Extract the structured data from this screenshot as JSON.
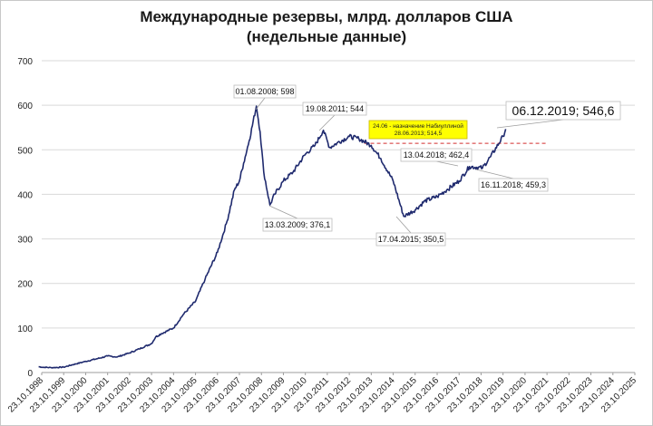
{
  "title_line1": "Международные резервы, млрд. долларов США",
  "title_line2": "(недельные данные)",
  "chart_data": {
    "type": "line",
    "ylim": [
      0,
      700
    ],
    "yticks": [
      0,
      100,
      200,
      300,
      400,
      500,
      600,
      700
    ],
    "xticks": [
      "23.10.1998",
      "23.10.1999",
      "23.10.2000",
      "23.10.2001",
      "23.10.2002",
      "23.10.2003",
      "23.10.2004",
      "23.10.2005",
      "23.10.2006",
      "23.10.2007",
      "23.10.2008",
      "23.10.2009",
      "23.10.2010",
      "23.10.2011",
      "23.10.2012",
      "23.10.2013",
      "23.10.2014",
      "23.10.2015",
      "23.10.2016",
      "23.10.2017",
      "23.10.2018",
      "23.10.2019",
      "23.10.2020",
      "23.10.2021",
      "23.10.2022",
      "23.10.2023",
      "23.10.2024",
      "23.10.2025"
    ],
    "grid": true,
    "series": [
      {
        "color": "#1f2a6e",
        "points": [
          [
            "1998-09-01",
            13
          ],
          [
            "1998-10-23",
            12
          ],
          [
            "1999-04-01",
            11
          ],
          [
            "1999-10-23",
            12
          ],
          [
            "2000-04-01",
            18
          ],
          [
            "2000-10-23",
            25
          ],
          [
            "2001-04-01",
            30
          ],
          [
            "2001-10-23",
            37
          ],
          [
            "2002-04-01",
            35
          ],
          [
            "2002-10-23",
            44
          ],
          [
            "2003-04-01",
            53
          ],
          [
            "2003-10-23",
            65
          ],
          [
            "2004-01-01",
            80
          ],
          [
            "2004-04-01",
            87
          ],
          [
            "2004-10-23",
            100
          ],
          [
            "2005-04-01",
            130
          ],
          [
            "2005-10-23",
            160
          ],
          [
            "2006-04-01",
            210
          ],
          [
            "2006-10-23",
            270
          ],
          [
            "2007-04-01",
            340
          ],
          [
            "2007-08-01",
            410
          ],
          [
            "2007-10-23",
            430
          ],
          [
            "2008-01-01",
            470
          ],
          [
            "2008-04-01",
            520
          ],
          [
            "2008-08-01",
            598
          ],
          [
            "2008-10-01",
            540
          ],
          [
            "2008-12-01",
            450
          ],
          [
            "2009-03-13",
            376.1
          ],
          [
            "2009-06-01",
            400
          ],
          [
            "2009-10-23",
            430
          ],
          [
            "2010-04-01",
            450
          ],
          [
            "2010-10-23",
            490
          ],
          [
            "2011-04-01",
            510
          ],
          [
            "2011-08-19",
            544
          ],
          [
            "2011-12-01",
            505
          ],
          [
            "2012-04-01",
            515
          ],
          [
            "2012-10-23",
            530
          ],
          [
            "2013-04-01",
            525
          ],
          [
            "2013-10-23",
            510
          ],
          [
            "2014-04-01",
            480
          ],
          [
            "2014-10-23",
            430
          ],
          [
            "2015-04-17",
            350.5
          ],
          [
            "2015-10-23",
            365
          ],
          [
            "2016-04-01",
            385
          ],
          [
            "2016-10-23",
            395
          ],
          [
            "2017-04-01",
            410
          ],
          [
            "2017-10-23",
            430
          ],
          [
            "2018-04-13",
            462.4
          ],
          [
            "2018-11-16",
            459.3
          ],
          [
            "2019-04-01",
            485
          ],
          [
            "2019-10-23",
            530
          ],
          [
            "2019-12-06",
            546.6
          ]
        ]
      }
    ],
    "reference_line": {
      "y": 514.5,
      "from": "2013-06-28",
      "to": "2021-10-23",
      "color": "#d32f2f",
      "style": "dashed"
    },
    "annotations": [
      {
        "text": "01.08.2008; 598",
        "date": "2008-08-01",
        "value": 598
      },
      {
        "text": "19.08.2011; 544",
        "date": "2011-08-19",
        "value": 544
      },
      {
        "text": "13.03.2009; 376,1",
        "date": "2009-03-13",
        "value": 376.1
      },
      {
        "text": "13.04.2018; 462,4",
        "date": "2018-04-13",
        "value": 462.4
      },
      {
        "text": "16.11.2018; 459,3",
        "date": "2018-11-16",
        "value": 459.3
      },
      {
        "text": "17.04.2015; 350,5",
        "date": "2015-04-17",
        "value": 350.5
      },
      {
        "text": "06.12.2019; 546,6",
        "date": "2019-12-06",
        "value": 546.6,
        "emphasis": true
      },
      {
        "text": "24.06 - назначение Набиуллиной",
        "text2": "28.06.2013; 514,5",
        "date": "2013-06-28",
        "value": 514.5,
        "highlight": "#ffff00"
      }
    ]
  }
}
